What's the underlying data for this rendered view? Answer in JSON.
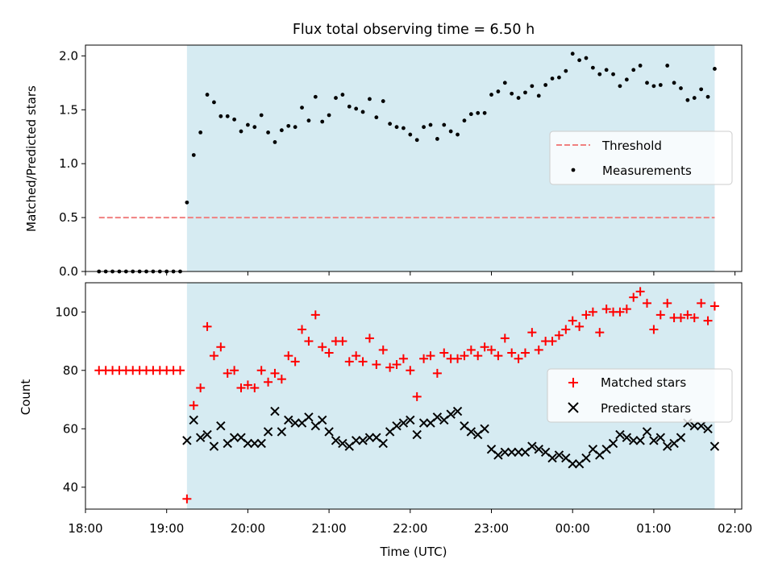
{
  "figure": {
    "title": "Flux total observing time = 6.50 h",
    "xlabel": "Time (UTC)",
    "highlight_color": "#add8e6"
  },
  "chart_data": [
    {
      "type": "scatter",
      "title": "Flux total observing time = 6.50 h",
      "xlabel": "",
      "ylabel": "Matched/Predicted stars",
      "xlim": [
        "18:00",
        "02:05"
      ],
      "ylim": [
        0,
        2.1
      ],
      "yticks": [
        0.0,
        0.5,
        1.0,
        1.5,
        2.0
      ],
      "ytick_labels": [
        "0.0",
        "0.5",
        "1.0",
        "1.5",
        "2.0"
      ],
      "shaded_region": [
        "19:15",
        "01:45"
      ],
      "legend_position": "center-right",
      "threshold": {
        "name": "Threshold",
        "value": 0.5,
        "x_range": [
          "18:10",
          "01:45"
        ],
        "color": "#f08080",
        "style": "dashed"
      },
      "series": [
        {
          "name": "Measurements",
          "color": "#000000",
          "marker": "dot",
          "x": [
            "18:10",
            "18:15",
            "18:20",
            "18:25",
            "18:30",
            "18:35",
            "18:40",
            "18:45",
            "18:50",
            "18:55",
            "19:00",
            "19:05",
            "19:10",
            "19:15",
            "19:20",
            "19:25",
            "19:30",
            "19:35",
            "19:40",
            "19:45",
            "19:50",
            "19:55",
            "20:00",
            "20:05",
            "20:10",
            "20:15",
            "20:20",
            "20:25",
            "20:30",
            "20:35",
            "20:40",
            "20:45",
            "20:50",
            "20:55",
            "21:00",
            "21:05",
            "21:10",
            "21:15",
            "21:20",
            "21:25",
            "21:30",
            "21:35",
            "21:40",
            "21:45",
            "21:50",
            "21:55",
            "22:00",
            "22:05",
            "22:10",
            "22:15",
            "22:20",
            "22:25",
            "22:30",
            "22:35",
            "22:40",
            "22:45",
            "22:50",
            "22:55",
            "23:00",
            "23:05",
            "23:10",
            "23:15",
            "23:20",
            "23:25",
            "23:30",
            "23:35",
            "23:40",
            "23:45",
            "23:50",
            "23:55",
            "00:00",
            "00:05",
            "00:10",
            "00:15",
            "00:20",
            "00:25",
            "00:30",
            "00:35",
            "00:40",
            "00:45",
            "00:50",
            "00:55",
            "01:00",
            "01:05",
            "01:10",
            "01:15",
            "01:20",
            "01:25",
            "01:30",
            "01:35",
            "01:40",
            "01:45"
          ],
          "values": [
            0,
            0,
            0,
            0,
            0,
            0,
            0,
            0,
            0,
            0,
            0,
            0,
            0,
            0.64,
            1.08,
            1.29,
            1.64,
            1.57,
            1.44,
            1.44,
            1.41,
            1.3,
            1.36,
            1.34,
            1.45,
            1.29,
            1.2,
            1.31,
            1.35,
            1.34,
            1.52,
            1.4,
            1.62,
            1.39,
            1.45,
            1.61,
            1.64,
            1.53,
            1.51,
            1.48,
            1.6,
            1.43,
            1.58,
            1.37,
            1.34,
            1.33,
            1.27,
            1.22,
            1.34,
            1.36,
            1.23,
            1.36,
            1.3,
            1.27,
            1.4,
            1.46,
            1.47,
            1.47,
            1.64,
            1.67,
            1.75,
            1.65,
            1.61,
            1.66,
            1.72,
            1.63,
            1.73,
            1.79,
            1.8,
            1.86,
            2.02,
            1.96,
            1.98,
            1.89,
            1.83,
            1.87,
            1.83,
            1.72,
            1.78,
            1.87,
            1.91,
            1.75,
            1.72,
            1.73,
            1.91,
            1.75,
            1.7,
            1.59,
            1.61,
            1.69,
            1.62,
            1.88
          ]
        }
      ]
    },
    {
      "type": "scatter",
      "xlabel": "Time (UTC)",
      "ylabel": "Count",
      "xlim": [
        "18:00",
        "02:05"
      ],
      "ylim": [
        32.5,
        110
      ],
      "yticks": [
        40,
        60,
        80,
        100
      ],
      "xtick_labels": [
        "18:00",
        "19:00",
        "20:00",
        "21:00",
        "22:00",
        "23:00",
        "00:00",
        "01:00",
        "02:00"
      ],
      "shaded_region": [
        "19:15",
        "01:45"
      ],
      "legend_position": "center-right",
      "x": [
        "18:10",
        "18:15",
        "18:20",
        "18:25",
        "18:30",
        "18:35",
        "18:40",
        "18:45",
        "18:50",
        "18:55",
        "19:00",
        "19:05",
        "19:10",
        "19:15",
        "19:20",
        "19:25",
        "19:30",
        "19:35",
        "19:40",
        "19:45",
        "19:50",
        "19:55",
        "20:00",
        "20:05",
        "20:10",
        "20:15",
        "20:20",
        "20:25",
        "20:30",
        "20:35",
        "20:40",
        "20:45",
        "20:50",
        "20:55",
        "21:00",
        "21:05",
        "21:10",
        "21:15",
        "21:20",
        "21:25",
        "21:30",
        "21:35",
        "21:40",
        "21:45",
        "21:50",
        "21:55",
        "22:00",
        "22:05",
        "22:10",
        "22:15",
        "22:20",
        "22:25",
        "22:30",
        "22:35",
        "22:40",
        "22:45",
        "22:50",
        "22:55",
        "23:00",
        "23:05",
        "23:10",
        "23:15",
        "23:20",
        "23:25",
        "23:30",
        "23:35",
        "23:40",
        "23:45",
        "23:50",
        "23:55",
        "00:00",
        "00:05",
        "00:10",
        "00:15",
        "00:20",
        "00:25",
        "00:30",
        "00:35",
        "00:40",
        "00:45",
        "00:50",
        "00:55",
        "01:00",
        "01:05",
        "01:10",
        "01:15",
        "01:20",
        "01:25",
        "01:30",
        "01:35",
        "01:40",
        "01:45"
      ],
      "series": [
        {
          "name": "Matched stars",
          "color": "#ff0000",
          "marker": "plus",
          "values": [
            80,
            80,
            80,
            80,
            80,
            80,
            80,
            80,
            80,
            80,
            80,
            80,
            80,
            36,
            68,
            74,
            95,
            85,
            88,
            79,
            80,
            74,
            75,
            74,
            80,
            76,
            79,
            77,
            85,
            83,
            94,
            90,
            99,
            88,
            86,
            90,
            90,
            83,
            85,
            83,
            91,
            82,
            87,
            81,
            82,
            84,
            80,
            71,
            84,
            85,
            79,
            86,
            84,
            84,
            85,
            87,
            85,
            88,
            87,
            85,
            91,
            86,
            84,
            86,
            93,
            87,
            90,
            90,
            92,
            94,
            97,
            95,
            99,
            100,
            93,
            101,
            100,
            100,
            101,
            105,
            107,
            103,
            94,
            99,
            103,
            98,
            98,
            99,
            98,
            103,
            97,
            102
          ]
        },
        {
          "name": "Predicted stars",
          "color": "#000000",
          "marker": "x",
          "values": [
            null,
            null,
            null,
            null,
            null,
            null,
            null,
            null,
            null,
            null,
            null,
            null,
            null,
            56,
            63,
            57,
            58,
            54,
            61,
            55,
            57,
            57,
            55,
            55,
            55,
            59,
            66,
            59,
            63,
            62,
            62,
            64,
            61,
            63,
            59,
            56,
            55,
            54,
            56,
            56,
            57,
            57,
            55,
            59,
            61,
            62,
            63,
            58,
            62,
            62,
            64,
            63,
            65,
            66,
            61,
            59,
            58,
            60,
            53,
            51,
            52,
            52,
            52,
            52,
            54,
            53,
            52,
            50,
            51,
            50,
            48,
            48,
            50,
            53,
            51,
            53,
            55,
            58,
            57,
            56,
            56,
            59,
            56,
            57,
            54,
            55,
            57,
            62,
            61,
            61,
            60,
            54
          ]
        }
      ]
    }
  ]
}
